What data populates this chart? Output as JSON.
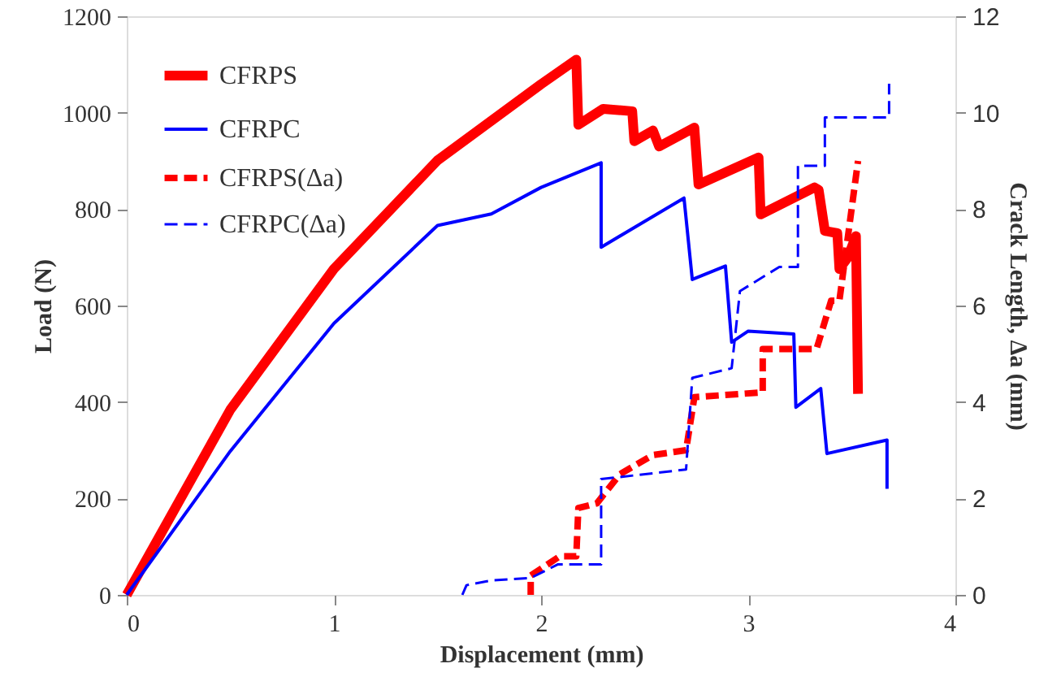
{
  "chart_data": {
    "type": "line",
    "xlabel": "Displacement (mm)",
    "ylabel": "Load (N)",
    "y2label": "Crack Length, Δa (mm)",
    "xlim": [
      0,
      4
    ],
    "xticks": [
      0,
      1,
      2,
      3,
      4
    ],
    "ylim": [
      0,
      1200
    ],
    "yticks": [
      0,
      200,
      400,
      600,
      800,
      1000,
      1200
    ],
    "y2lim": [
      0,
      12
    ],
    "y2ticks": [
      0,
      2,
      4,
      6,
      8,
      10,
      12
    ],
    "grid": false,
    "legend": "top left",
    "marker": "none",
    "series": [
      {
        "name": "CFRPS",
        "color": "#ff0000",
        "line_style": "solid",
        "x": [
          0,
          0.5,
          1,
          1.5,
          2,
          2.17,
          2.18,
          2.3,
          2.44,
          2.45,
          2.54,
          2.57,
          2.74,
          2.76,
          3.05,
          3.06,
          3.32,
          3.34,
          3.37,
          3.43,
          3.44,
          3.48,
          3.52,
          3.53
        ],
        "values": [
          0,
          384,
          676,
          901,
          1059,
          1110,
          975,
          1008,
          1003,
          941,
          963,
          930,
          969,
          851,
          907,
          789,
          845,
          840,
          755,
          750,
          676,
          699,
          744,
          417
        ]
      },
      {
        "name": "CFRPC",
        "color": "#0000ff",
        "line_style": "solid",
        "x": [
          0,
          0.5,
          1,
          1.5,
          1.76,
          2,
          2.29,
          2.29,
          2.69,
          2.73,
          2.89,
          2.92,
          3.0,
          3.22,
          3.23,
          3.35,
          3.38,
          3.67,
          3.67
        ],
        "values": [
          0,
          298,
          563,
          766,
          790,
          845,
          896,
          721,
          823,
          654,
          682,
          524,
          547,
          541,
          389,
          428,
          293,
          321,
          220
        ]
      },
      {
        "name": "CFRPS(Δa)",
        "color": "#ff0000",
        "line_style": "dashed",
        "axis": "y2",
        "x": [
          1.95,
          1.95,
          2.09,
          2.17,
          2.18,
          2.27,
          2.38,
          2.54,
          2.7,
          2.74,
          3.07,
          3.07,
          3.33,
          3.4,
          3.44,
          3.53
        ],
        "values": [
          0,
          0.4,
          0.8,
          0.8,
          1.8,
          1.9,
          2.5,
          2.9,
          3.0,
          4.1,
          4.2,
          5.1,
          5.1,
          6.1,
          6.1,
          9.0
        ]
      },
      {
        "name": "CFRPC(Δa)",
        "color": "#0000ff",
        "line_style": "dashed",
        "axis": "y2",
        "x": [
          1.62,
          1.64,
          1.76,
          1.95,
          2.08,
          2.29,
          2.29,
          2.7,
          2.73,
          2.92,
          2.96,
          3.15,
          3.24,
          3.24,
          3.37,
          3.37,
          3.68,
          3.68
        ],
        "values": [
          0,
          0.2,
          0.3,
          0.35,
          0.63,
          0.63,
          2.4,
          2.6,
          4.5,
          4.7,
          6.3,
          6.8,
          6.8,
          8.9,
          8.9,
          9.9,
          9.9,
          10.6
        ]
      }
    ]
  }
}
